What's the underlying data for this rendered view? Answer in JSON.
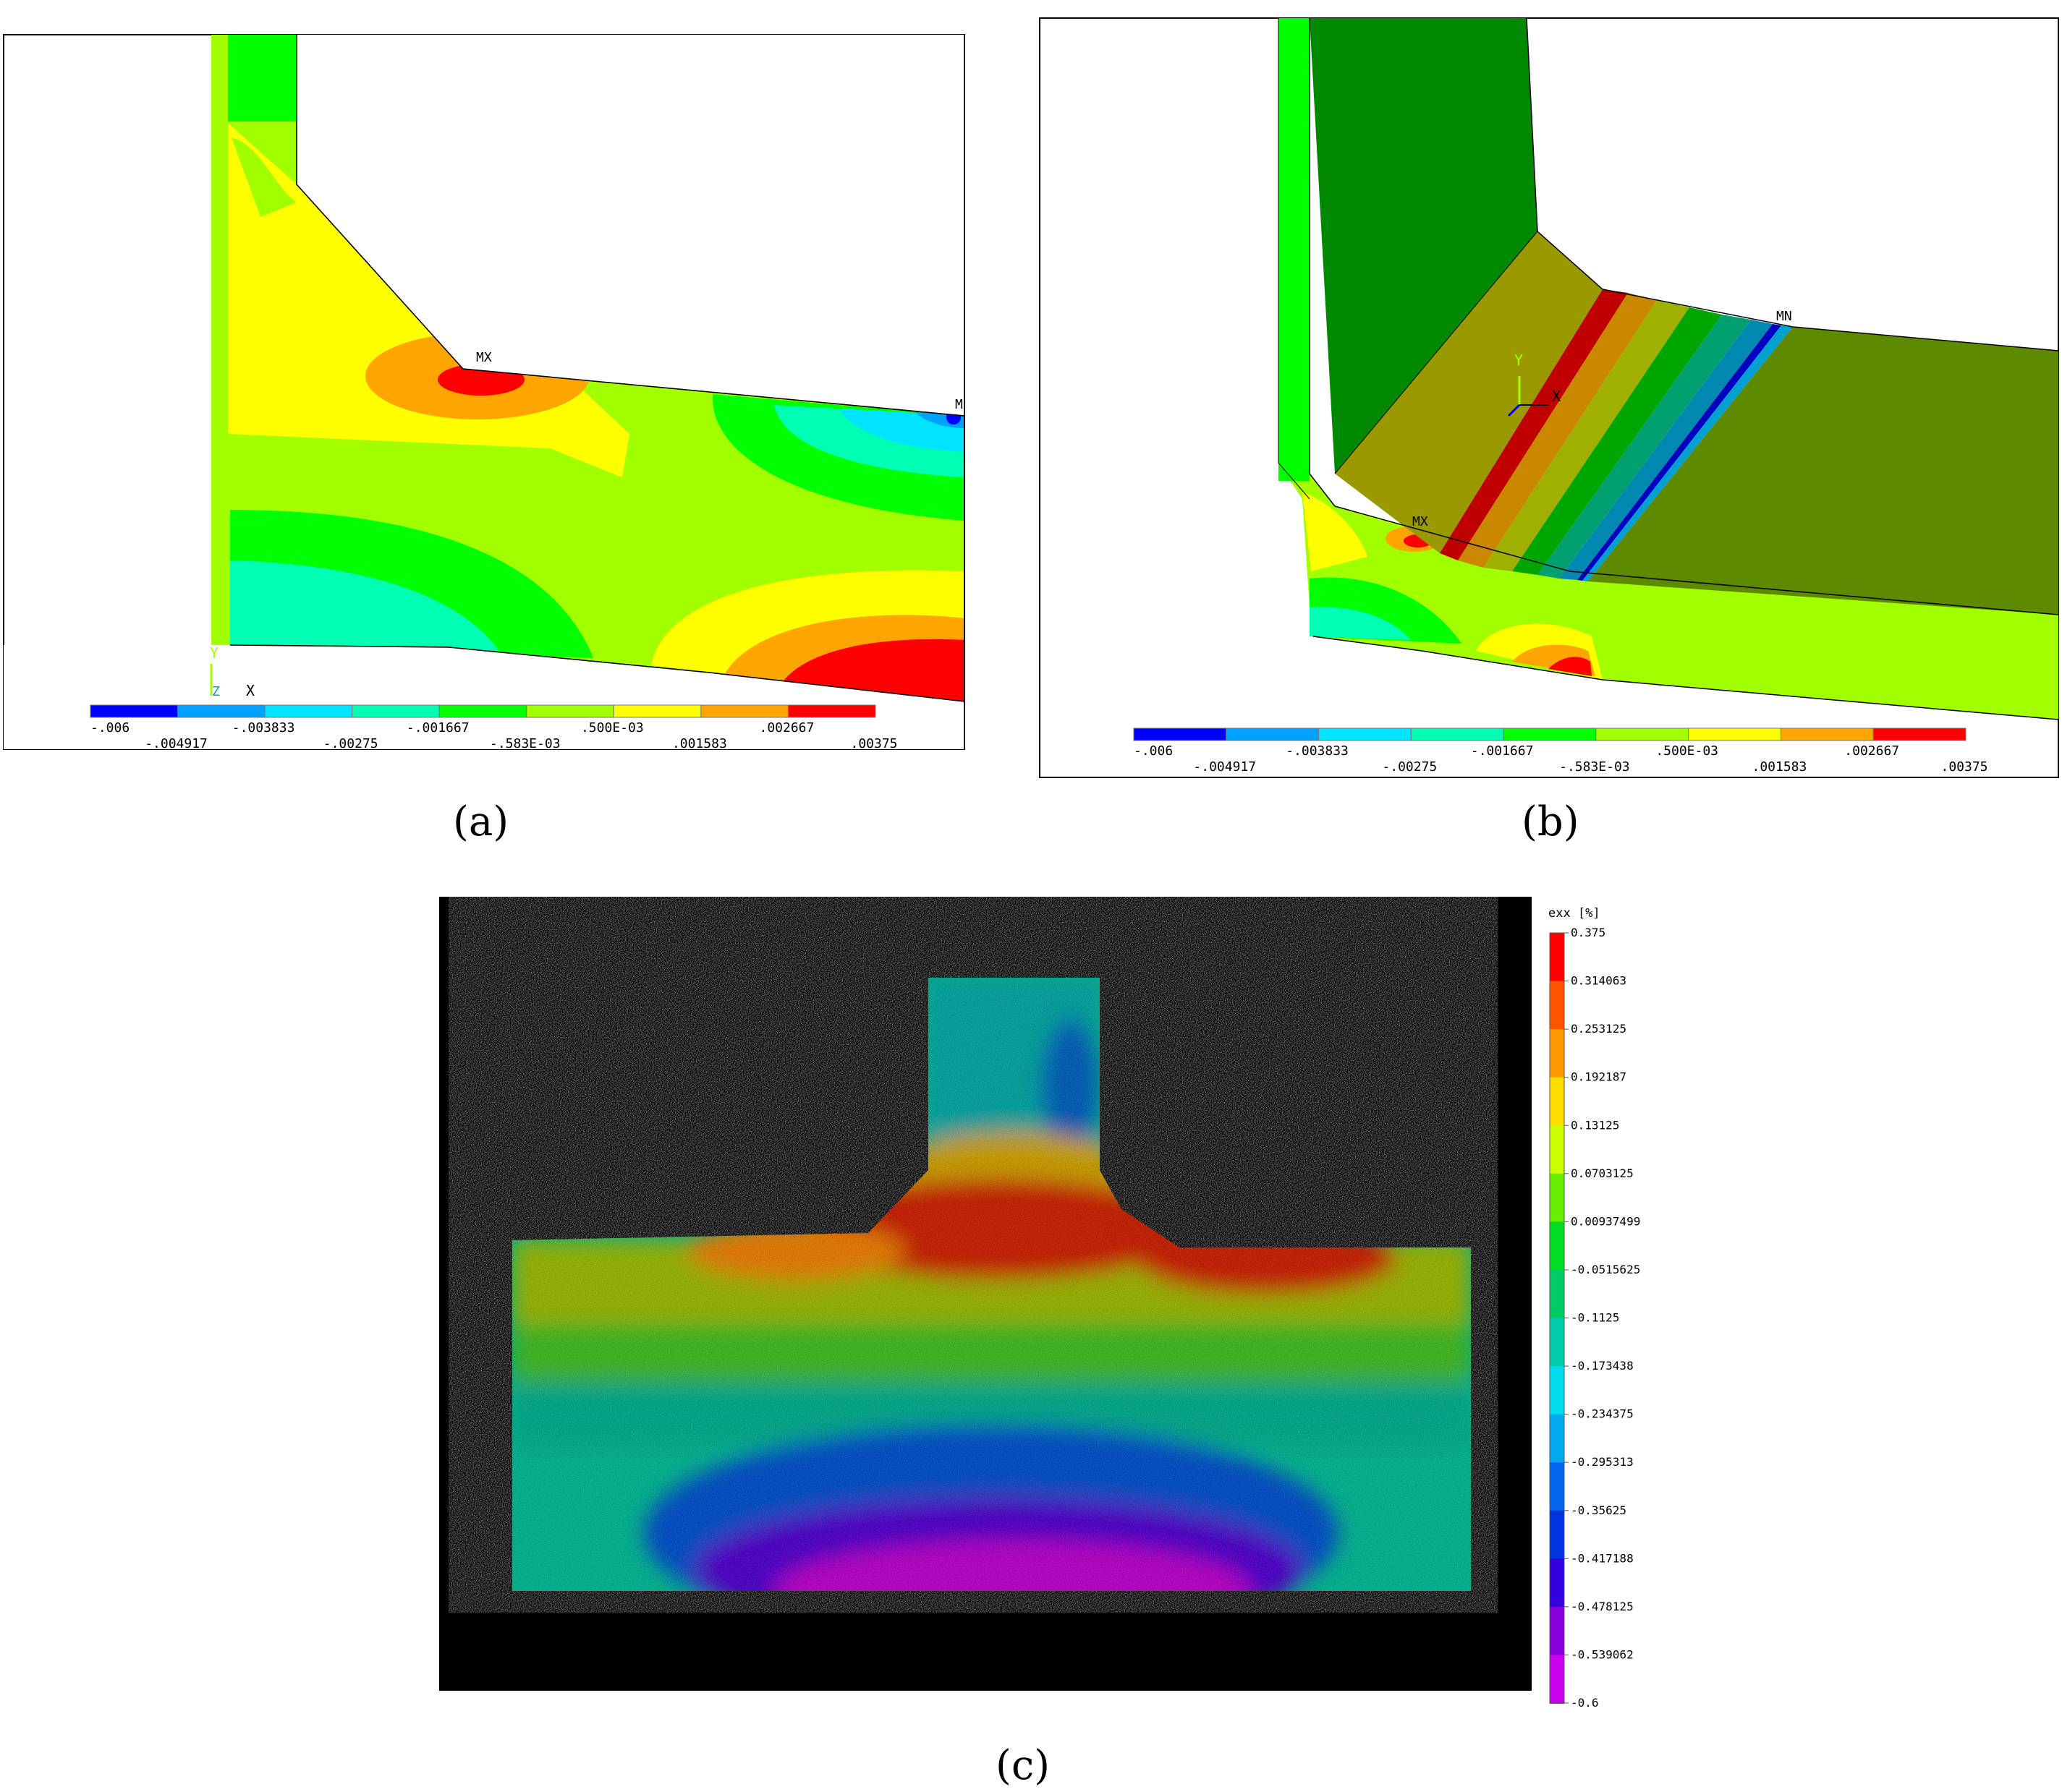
{
  "panels": [
    {
      "id": "a",
      "caption": "(a)",
      "markers": {
        "max": "MX",
        "min": "M"
      },
      "axes": {
        "y": "Y",
        "z": "Z",
        "x": "X"
      },
      "legend": {
        "colors": [
          "#0000ff",
          "#00a2ff",
          "#00e5ff",
          "#00ffb2",
          "#00ff00",
          "#a2ff00",
          "#ffff00",
          "#ffa500",
          "#ff0000"
        ],
        "labels": [
          "-.006",
          "-.004917",
          "-.003833",
          "-.00275",
          "-.001667",
          "-.583E-03",
          ".500E-03",
          ".001583",
          ".002667",
          ".00375"
        ]
      }
    },
    {
      "id": "b",
      "caption": "(b)",
      "markers": {
        "max": "MX",
        "min": "MN"
      },
      "axes": {
        "y": "Y",
        "x": "X"
      },
      "legend": {
        "colors": [
          "#0000ff",
          "#00a2ff",
          "#00e5ff",
          "#00ffb2",
          "#00ff00",
          "#a2ff00",
          "#ffff00",
          "#ffa500",
          "#ff0000"
        ],
        "labels": [
          "-.006",
          "-.004917",
          "-.003833",
          "-.00275",
          "-.001667",
          "-.583E-03",
          ".500E-03",
          ".001583",
          ".002667",
          ".00375"
        ]
      }
    },
    {
      "id": "c",
      "caption": "(c)",
      "colorbar": {
        "title": "exx [%]",
        "labels": [
          "0.375",
          "0.314063",
          "0.253125",
          "0.192187",
          "0.13125",
          "0.0703125",
          "0.00937499",
          "-0.0515625",
          "-0.1125",
          "-0.173438",
          "-0.234375",
          "-0.295313",
          "-0.35625",
          "-0.417188",
          "-0.478125",
          "-0.539062",
          "-0.6"
        ],
        "colors": [
          "#ff0000",
          "#ff5500",
          "#ff9900",
          "#ffdd00",
          "#ccff00",
          "#66ee00",
          "#00dd22",
          "#00cc66",
          "#00ccaa",
          "#00ddee",
          "#00aaee",
          "#0066ee",
          "#0033dd",
          "#3300dd",
          "#8800dd",
          "#cc00ee"
        ]
      }
    }
  ]
}
